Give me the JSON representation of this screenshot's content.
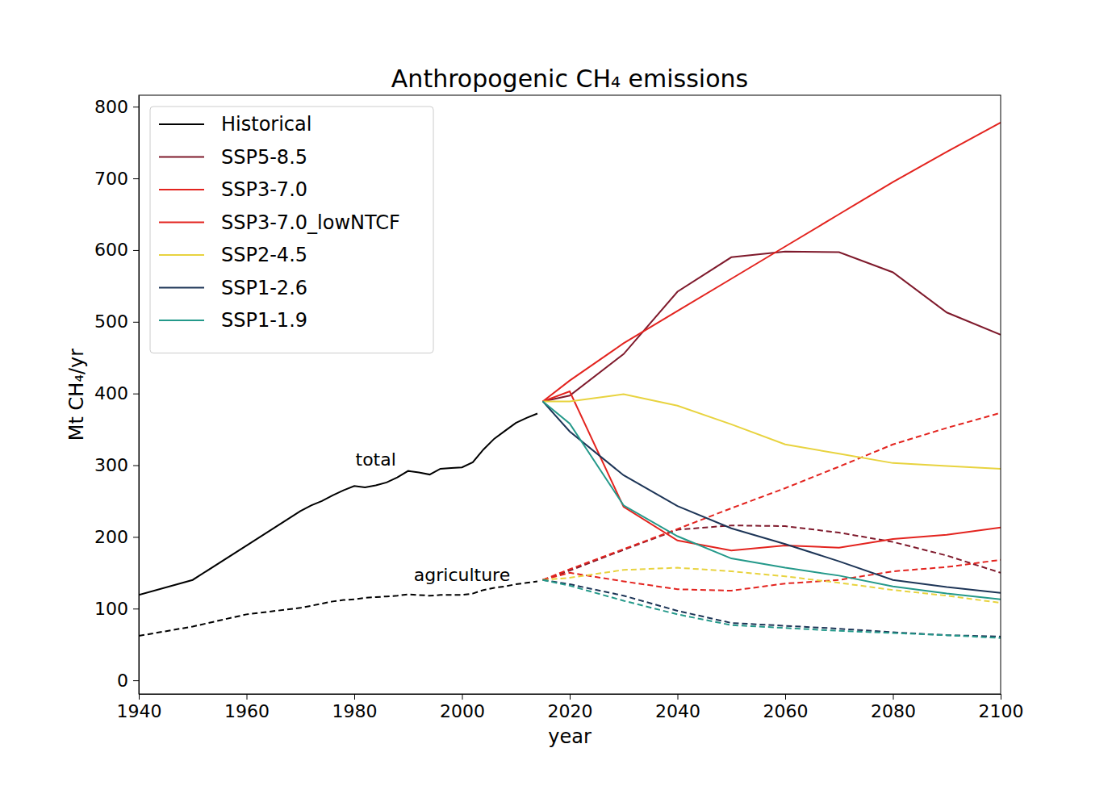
{
  "chart_data": {
    "type": "line",
    "title": "Anthropogenic CH₄ emissions",
    "x_label": "year",
    "y_label": "Mt CH₄/yr",
    "xlim": [
      1940,
      2100
    ],
    "ylim": [
      -19,
      816
    ],
    "xticks": [
      1940,
      1960,
      1980,
      2000,
      2020,
      2040,
      2060,
      2080,
      2100
    ],
    "yticks": [
      0,
      100,
      200,
      300,
      400,
      500,
      600,
      700,
      800
    ],
    "grid": false,
    "legend": "upper left",
    "annotations": [
      {
        "text": "total",
        "x": 1984,
        "y": 300
      },
      {
        "text": "agriculture",
        "x": 2000,
        "y": 138
      }
    ],
    "series": [
      {
        "name": "Historical",
        "color": "#000000",
        "x": [
          1940,
          1950,
          1960,
          1970,
          1972,
          1974,
          1976,
          1978,
          1980,
          1982,
          1984,
          1986,
          1988,
          1990,
          1992,
          1994,
          1996,
          1998,
          2000,
          2002,
          2004,
          2006,
          2008,
          2010,
          2012,
          2014
        ],
        "values": [
          119,
          140,
          188,
          236,
          244,
          250,
          258,
          265,
          271,
          269,
          272,
          276,
          283,
          292,
          290,
          287,
          295,
          296,
          297,
          304,
          322,
          337,
          348,
          359,
          366,
          372
        ],
        "agriculture": [
          62,
          75,
          92,
          101,
          104,
          107,
          110,
          112,
          113,
          115,
          116,
          117,
          118,
          120,
          119,
          118,
          119,
          119,
          119,
          121,
          126,
          129,
          131,
          134,
          136,
          138
        ]
      },
      {
        "name": "SSP5-8.5",
        "color": "#7f1a2c",
        "x": [
          2015,
          2020,
          2030,
          2040,
          2050,
          2060,
          2070,
          2080,
          2090,
          2100
        ],
        "values": [
          389,
          397,
          455,
          542,
          590,
          598,
          597,
          569,
          513,
          482
        ],
        "agriculture": [
          140,
          153,
          182,
          210,
          216,
          215,
          206,
          193,
          174,
          150
        ]
      },
      {
        "name": "SSP3-7.0",
        "color": "#e3241f",
        "x": [
          2015,
          2020,
          2030,
          2040,
          2050,
          2060,
          2070,
          2080,
          2090,
          2100
        ],
        "values": [
          389,
          418,
          470,
          515,
          560,
          605,
          650,
          695,
          737,
          778
        ],
        "agriculture": [
          140,
          155,
          183,
          211,
          240,
          268,
          298,
          329,
          352,
          373
        ]
      },
      {
        "name": "SSP3-7.0_lowNTCF",
        "color": "#e3241f",
        "x": [
          2015,
          2020,
          2030,
          2040,
          2050,
          2060,
          2070,
          2080,
          2090,
          2100
        ],
        "values": [
          389,
          403,
          242,
          195,
          181,
          188,
          185,
          197,
          203,
          213
        ],
        "agriculture": [
          140,
          150,
          138,
          127,
          125,
          135,
          140,
          152,
          158,
          168
        ]
      },
      {
        "name": "SSP2-4.5",
        "color": "#e8d33f",
        "x": [
          2015,
          2020,
          2030,
          2040,
          2050,
          2060,
          2070,
          2080,
          2090,
          2100
        ],
        "values": [
          389,
          389,
          399,
          383,
          357,
          329,
          316,
          303,
          299,
          295
        ],
        "agriculture": [
          140,
          143,
          154,
          157,
          152,
          145,
          136,
          126,
          118,
          108
        ]
      },
      {
        "name": "SSP1-2.6",
        "color": "#1d3557",
        "x": [
          2015,
          2020,
          2030,
          2040,
          2050,
          2060,
          2070,
          2080,
          2090,
          2100
        ],
        "values": [
          389,
          347,
          286,
          243,
          212,
          190,
          166,
          140,
          130,
          122
        ],
        "agriculture": [
          140,
          134,
          118,
          97,
          80,
          76,
          72,
          67,
          63,
          61
        ]
      },
      {
        "name": "SSP1-1.9",
        "color": "#24998a",
        "x": [
          2015,
          2020,
          2030,
          2040,
          2050,
          2060,
          2070,
          2080,
          2090,
          2100
        ],
        "values": [
          389,
          358,
          244,
          201,
          170,
          157,
          146,
          131,
          121,
          113
        ],
        "agriculture": [
          140,
          132,
          111,
          92,
          77,
          73,
          69,
          66,
          63,
          59
        ]
      }
    ]
  }
}
